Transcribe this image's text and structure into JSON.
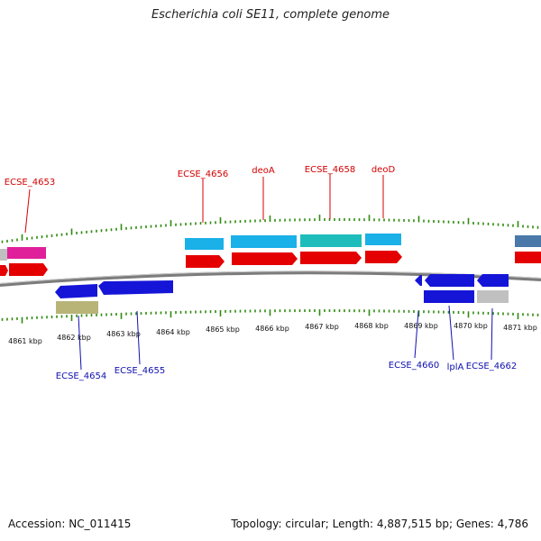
{
  "title": "Escherichia coli SE11, complete genome",
  "footer": {
    "accession": "Accession: NC_011415",
    "summary": "Topology: circular; Length: 4,887,515 bp; Genes: 4,786"
  },
  "scale": {
    "unit": "kbp",
    "labels": [
      "4861 kbp",
      "4862 kbp",
      "4863 kbp",
      "4864 kbp",
      "4865 kbp",
      "4866 kbp",
      "4867 kbp",
      "4868 kbp",
      "4869 kbp",
      "4870 kbp",
      "4871 kbp"
    ]
  },
  "colors": {
    "backbone": "#8a8a8a",
    "tick": "#2e8b0e",
    "top_label": "#d40000",
    "bottom_label": "#1010b0"
  },
  "top_labels": [
    "ECSE_4653",
    "ECSE_4656",
    "deoA",
    "ECSE_4658",
    "deoD"
  ],
  "bottom_labels": [
    "ECSE_4654",
    "ECSE_4655",
    "ECSE_4660",
    "lplA",
    "ECSE_4662"
  ]
}
